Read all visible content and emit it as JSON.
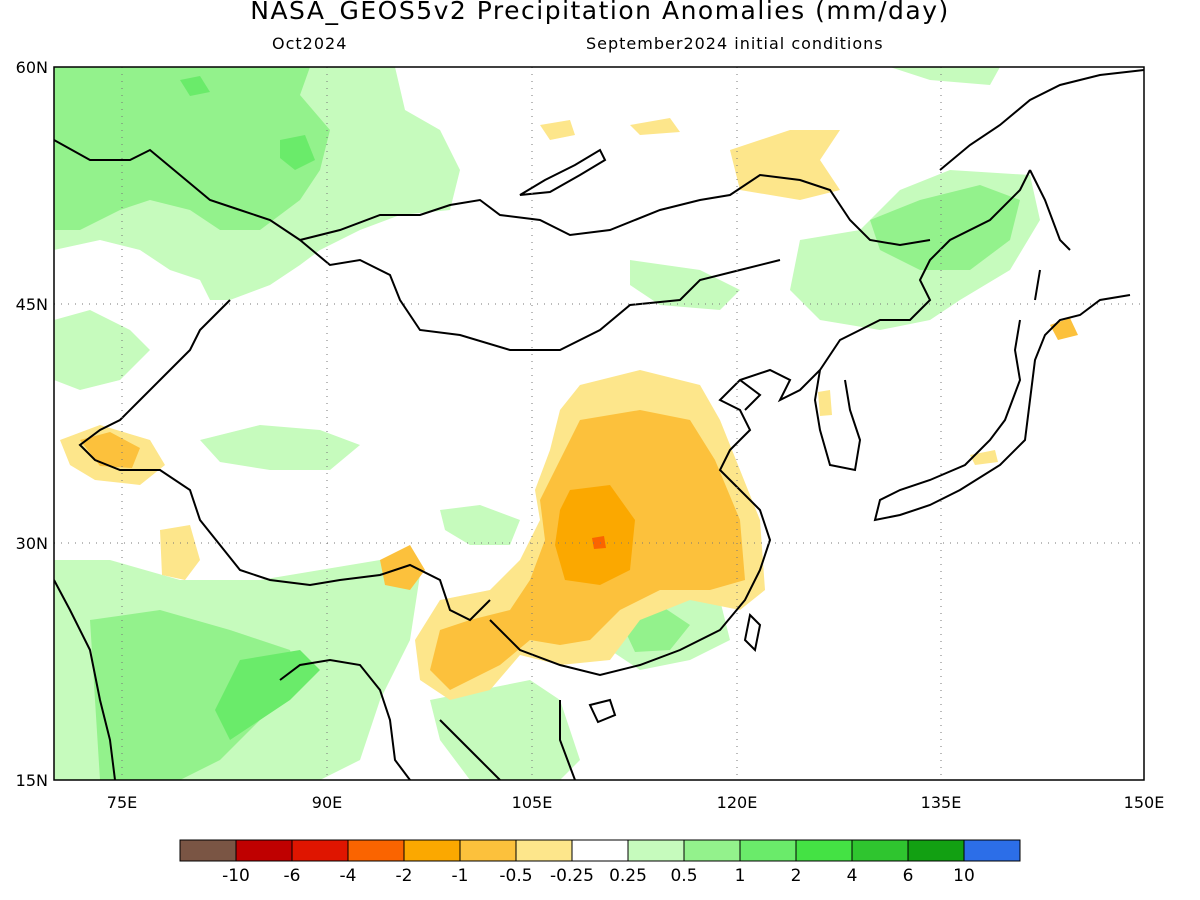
{
  "header": {
    "title": "NASA_GEOS5v2 Precipitation Anomalies (mm/day)",
    "period": "Oct2024",
    "initial_conditions": "September2024 initial conditions"
  },
  "axes": {
    "lat_labels": [
      "60N",
      "45N",
      "30N",
      "15N"
    ],
    "lon_labels": [
      "75E",
      "90E",
      "105E",
      "120E",
      "135E",
      "150E"
    ],
    "lat_values": [
      60,
      45,
      30,
      15
    ],
    "lon_values": [
      75,
      90,
      105,
      120,
      135,
      150
    ],
    "lon_range": [
      70,
      150
    ],
    "lat_range": [
      15,
      60
    ],
    "gridlines": "dotted"
  },
  "colorbar": {
    "colors": [
      "#7a5544",
      "#bf0000",
      "#df1500",
      "#fa6400",
      "#fba800",
      "#fcc13c",
      "#fde68b",
      "#ffffff",
      "#c6fbbd",
      "#93f28c",
      "#6aeb6a",
      "#44e244",
      "#2fc52f",
      "#12a012",
      "#2c6ee8"
    ],
    "labels": [
      "-10",
      "-6",
      "-4",
      "-2",
      "-1",
      "-0.5",
      "-0.25",
      "0.25",
      "0.5",
      "1",
      "2",
      "4",
      "6",
      "10"
    ]
  },
  "map_data": {
    "wet_regions": [
      {
        "name": "west-siberia",
        "level": "0.5"
      },
      {
        "name": "northeast-china",
        "level": "0.5"
      },
      {
        "name": "indian-subcontinent",
        "level": "1"
      },
      {
        "name": "bay-of-bengal-coast",
        "level": "2"
      }
    ],
    "dry_regions": [
      {
        "name": "central-china",
        "level": "-1"
      },
      {
        "name": "central-china-core",
        "level": "-2"
      },
      {
        "name": "yunnan",
        "level": "-1"
      },
      {
        "name": "kashmir",
        "level": "-1"
      },
      {
        "name": "mongolia-north",
        "level": "-0.25"
      },
      {
        "name": "hokkaido",
        "level": "-0.5"
      }
    ]
  }
}
